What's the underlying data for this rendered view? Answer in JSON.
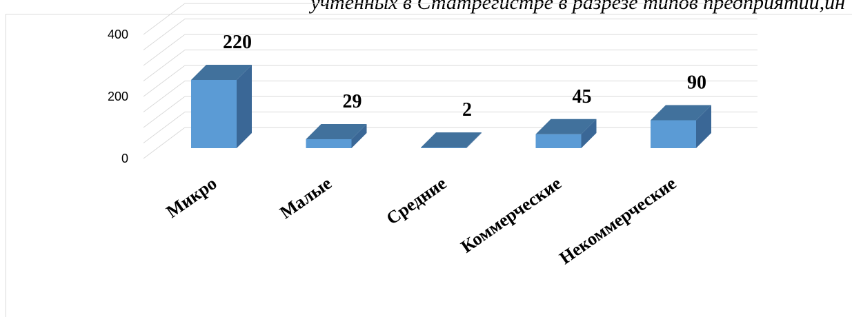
{
  "caption": "учтенных в Статрегистре в разрезе типов предприятий,ин",
  "chart_data": {
    "type": "bar",
    "style": "3d-column",
    "categories": [
      "Микро",
      "Малые",
      "Средние",
      "Коммерческие",
      "Некоммерческие"
    ],
    "values": [
      220,
      29,
      2,
      45,
      90
    ],
    "data_labels": [
      "220",
      "29",
      "2",
      "45",
      "90"
    ],
    "y_ticks": [
      "0",
      "200",
      "400"
    ],
    "ylim": [
      0,
      400
    ],
    "grid": true,
    "legend": "none",
    "colors": {
      "bar_front": "#5b9bd5",
      "bar_side": "#3a6796",
      "bar_top": "#41719c",
      "grid": "#d9d9d9"
    }
  }
}
